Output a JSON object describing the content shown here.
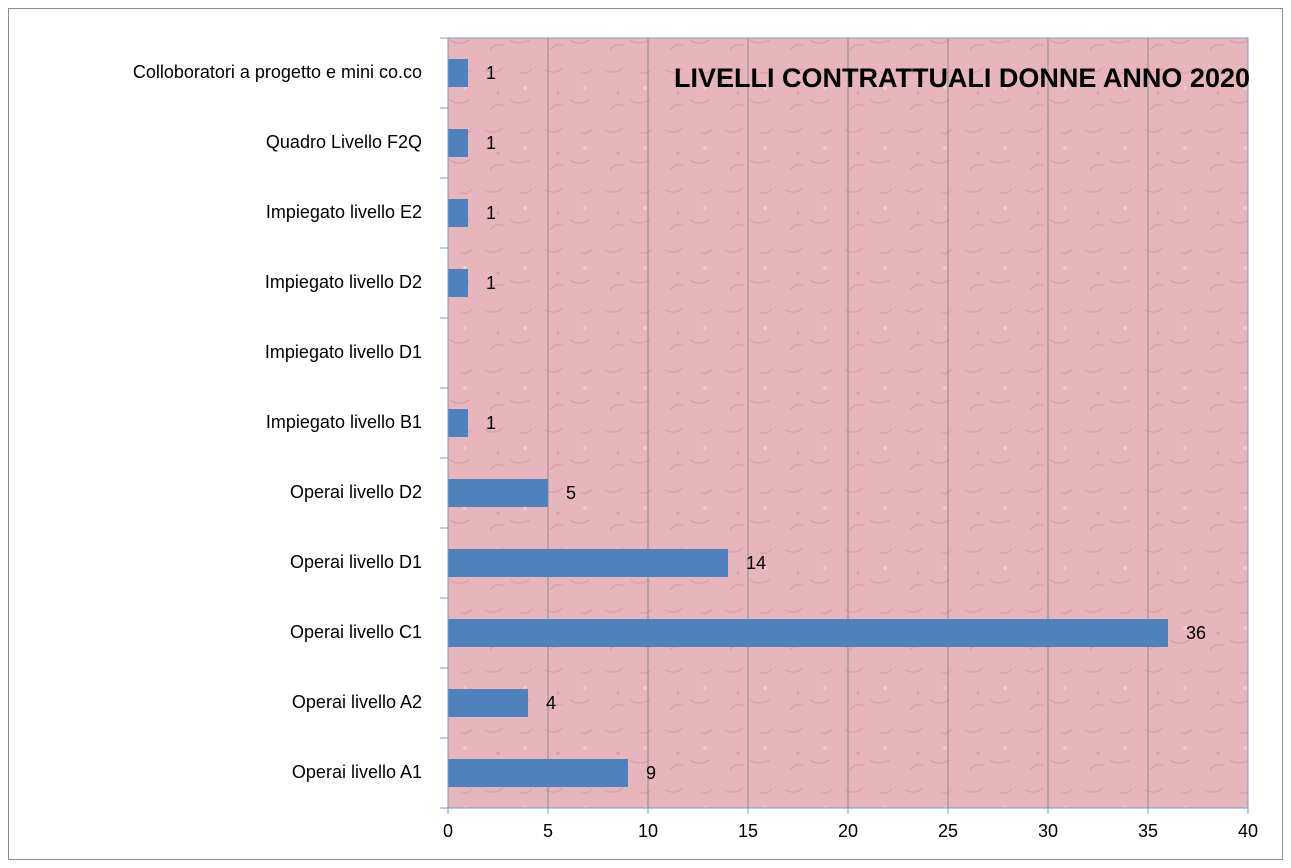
{
  "chart_data": {
    "type": "hbar",
    "title": "LIVELLI CONTRATTUALI DONNE ANNO 2020",
    "categories": [
      "Operai livello A1",
      "Operai livello A2",
      "Operai livello C1",
      "Operai livello D1",
      "Operai livello D2",
      "Impiegato livello B1",
      "Impiegato livello D1",
      "Impiegato livello D2",
      "Impiegato livello E2",
      "Quadro Livello F2Q",
      "Colloboratori a progetto e mini co.co"
    ],
    "values": [
      9,
      4,
      36,
      14,
      5,
      1,
      null,
      1,
      1,
      1,
      1
    ],
    "color": "#4f81bd",
    "xlim": [
      0,
      40
    ],
    "xticks": [
      0,
      5,
      10,
      15,
      20,
      25,
      30,
      35,
      40
    ],
    "grid": true
  }
}
